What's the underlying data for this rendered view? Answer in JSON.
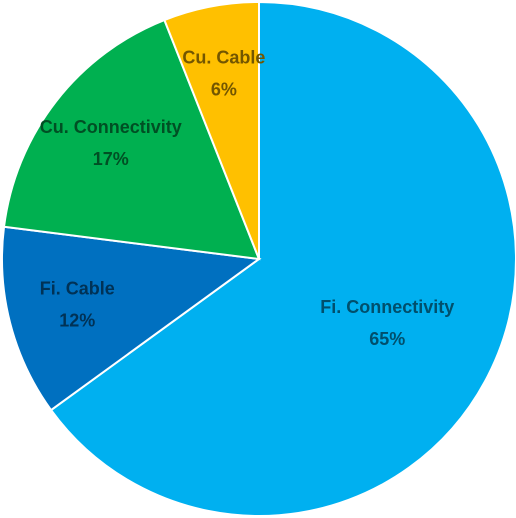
{
  "chart_data": {
    "type": "pie",
    "categories": [
      "Fi. Connectivity",
      "Fi. Cable",
      "Cu. Connectivity",
      "Cu. Cable"
    ],
    "values": [
      65,
      12,
      17,
      6
    ],
    "value_labels": [
      "65%",
      "12%",
      "17%",
      "6%"
    ],
    "colors": [
      "#00b0f0",
      "#0070c0",
      "#00b050",
      "#ffc000"
    ]
  }
}
